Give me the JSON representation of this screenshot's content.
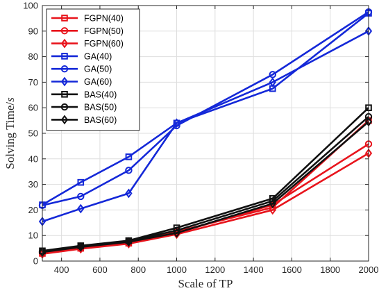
{
  "chart_data": {
    "type": "line",
    "title": "",
    "xlabel": "Scale of TP",
    "ylabel_main": "Solving Time/",
    "ylabel_unit": "s",
    "xlim": [
      300,
      2000
    ],
    "ylim": [
      0,
      100
    ],
    "xticks": [
      400,
      600,
      800,
      1000,
      1200,
      1400,
      1600,
      1800,
      2000
    ],
    "yticks": [
      0,
      10,
      20,
      30,
      40,
      50,
      60,
      70,
      80,
      90,
      100
    ],
    "grid": true,
    "legend_position": "top-left",
    "x": [
      300,
      500,
      750,
      1000,
      1500,
      2000
    ],
    "series": [
      {
        "name": "FGPN(40)",
        "color": "#e8141c",
        "marker": "square",
        "values": [
          3.0,
          5.0,
          7.0,
          11.5,
          21.0,
          55.0
        ]
      },
      {
        "name": "FGPN(50)",
        "color": "#e8141c",
        "marker": "circle",
        "values": [
          3.3,
          5.3,
          7.3,
          11.0,
          22.0,
          45.8
        ]
      },
      {
        "name": "FGPN(60)",
        "color": "#e8141c",
        "marker": "diamond",
        "values": [
          2.8,
          4.8,
          6.8,
          10.5,
          20.0,
          42.2
        ]
      },
      {
        "name": "GA(40)",
        "color": "#1428d8",
        "marker": "square",
        "values": [
          22.0,
          30.8,
          40.8,
          54.0,
          67.5,
          97.0
        ]
      },
      {
        "name": "GA(50)",
        "color": "#1428d8",
        "marker": "circle",
        "values": [
          21.8,
          25.3,
          35.5,
          53.0,
          73.0,
          97.5
        ]
      },
      {
        "name": "GA(60)",
        "color": "#1428d8",
        "marker": "diamond",
        "values": [
          15.5,
          20.5,
          26.5,
          54.0,
          70.0,
          90.0
        ]
      },
      {
        "name": "BAS(40)",
        "color": "#111111",
        "marker": "square",
        "values": [
          4.0,
          6.0,
          8.0,
          13.0,
          24.5,
          60.0
        ]
      },
      {
        "name": "BAS(50)",
        "color": "#111111",
        "marker": "circle",
        "values": [
          3.8,
          5.8,
          7.8,
          12.0,
          23.5,
          56.5
        ]
      },
      {
        "name": "BAS(60)",
        "color": "#111111",
        "marker": "diamond",
        "values": [
          3.5,
          5.5,
          7.5,
          11.0,
          22.5,
          54.5
        ]
      }
    ]
  }
}
